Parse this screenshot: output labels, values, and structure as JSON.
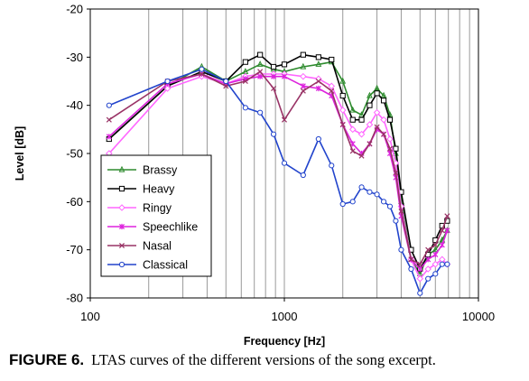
{
  "chart_data": {
    "type": "line",
    "xlabel": "Frequency [Hz]",
    "ylabel": "Level [dB]",
    "xscale": "log",
    "xlim": [
      100,
      10000
    ],
    "ylim": [
      -80,
      -20
    ],
    "xticks": [
      100,
      1000,
      10000
    ],
    "xtick_labels": [
      "100",
      "1000",
      "10000"
    ],
    "yticks": [
      -80,
      -70,
      -60,
      -50,
      -40,
      -30,
      -20
    ],
    "ytick_labels": [
      "-80",
      "-70",
      "-60",
      "-50",
      "-40",
      "-30",
      "-20"
    ],
    "grid": "vertical minor gridlines on log x axis",
    "legend_position": "lower-left",
    "series": [
      {
        "name": "Brassy",
        "color": "#2e8b2e",
        "marker": "triangle",
        "x": [
          125,
          250,
          375,
          500,
          630,
          750,
          880,
          1000,
          1250,
          1500,
          1750,
          2000,
          2250,
          2500,
          2750,
          3000,
          3250,
          3500,
          3750,
          4000,
          4500,
          5000,
          5500,
          6000,
          6500,
          6900
        ],
        "y": [
          -47,
          -36,
          -32,
          -35,
          -33,
          -31.5,
          -32.5,
          -33,
          -32,
          -31.5,
          -31,
          -35,
          -41,
          -42,
          -38,
          -36.5,
          -38,
          -42,
          -50,
          -60,
          -72,
          -75,
          -71,
          -70,
          -68,
          -66
        ]
      },
      {
        "name": "Heavy",
        "color": "#000000",
        "marker": "square",
        "x": [
          125,
          250,
          375,
          500,
          630,
          750,
          880,
          1000,
          1250,
          1500,
          1750,
          2000,
          2250,
          2500,
          2750,
          3000,
          3250,
          3500,
          3750,
          4000,
          4500,
          5000,
          5500,
          6000,
          6500,
          6900
        ],
        "y": [
          -47,
          -36,
          -33,
          -35,
          -31,
          -29.5,
          -32,
          -31.5,
          -29.5,
          -30,
          -30.5,
          -38,
          -43,
          -43,
          -40,
          -37.5,
          -39,
          -43,
          -49,
          -58,
          -70,
          -74,
          -71,
          -68,
          -65,
          -64
        ]
      },
      {
        "name": "Ringy",
        "color": "#ff66ff",
        "marker": "diamond",
        "x": [
          125,
          250,
          375,
          500,
          630,
          750,
          880,
          1000,
          1250,
          1500,
          1750,
          2000,
          2250,
          2500,
          2750,
          3000,
          3250,
          3500,
          3750,
          4000,
          4500,
          5000,
          5500,
          6000,
          6500,
          6900
        ],
        "y": [
          -50,
          -36.5,
          -34,
          -35.5,
          -34,
          -33.5,
          -33.5,
          -33.5,
          -34,
          -34.5,
          -36,
          -41,
          -45,
          -46,
          -44,
          -41.5,
          -43,
          -47,
          -52,
          -61,
          -72,
          -76,
          -74,
          -73,
          -72,
          -73
        ]
      },
      {
        "name": "Speechlike",
        "color": "#dd22dd",
        "marker": "star",
        "x": [
          125,
          250,
          375,
          500,
          630,
          750,
          880,
          1000,
          1250,
          1500,
          1750,
          2000,
          2250,
          2500,
          2750,
          3000,
          3250,
          3500,
          3750,
          4000,
          4500,
          5000,
          5500,
          6000,
          6500,
          6900
        ],
        "y": [
          -46.5,
          -35.5,
          -33.5,
          -35.5,
          -34.5,
          -34,
          -34,
          -34,
          -36,
          -36.5,
          -38,
          -44,
          -48,
          -50,
          -48,
          -45,
          -46,
          -50,
          -55,
          -63,
          -72,
          -74,
          -72,
          -71,
          -69,
          -66
        ]
      },
      {
        "name": "Nasal",
        "color": "#993366",
        "marker": "x",
        "x": [
          125,
          250,
          375,
          500,
          630,
          750,
          880,
          1000,
          1250,
          1500,
          1750,
          2000,
          2250,
          2500,
          2750,
          3000,
          3250,
          3500,
          3750,
          4000,
          4500,
          5000,
          5500,
          6000,
          6500,
          6900
        ],
        "y": [
          -43,
          -35,
          -33.5,
          -36,
          -35,
          -33,
          -36.5,
          -43,
          -37,
          -35,
          -37,
          -44,
          -49.5,
          -50.5,
          -48,
          -44.5,
          -46,
          -49,
          -54,
          -62,
          -72,
          -73,
          -70,
          -69,
          -66,
          -63
        ]
      },
      {
        "name": "Classical",
        "color": "#2244cc",
        "marker": "circle",
        "x": [
          125,
          250,
          375,
          500,
          630,
          750,
          880,
          1000,
          1250,
          1500,
          1750,
          2000,
          2250,
          2500,
          2750,
          3000,
          3250,
          3500,
          3750,
          4000,
          4500,
          5000,
          5500,
          6000,
          6500,
          6900
        ],
        "y": [
          -40,
          -35,
          -32.5,
          -35,
          -40.5,
          -41.5,
          -46,
          -52,
          -54.5,
          -47,
          -52.5,
          -60.5,
          -60,
          -57,
          -58,
          -58.5,
          -60,
          -61,
          -64,
          -70,
          -74,
          -79,
          -76,
          -75,
          -73,
          -73
        ]
      }
    ]
  },
  "caption": {
    "label": "FIGURE 6.",
    "text": "LTAS curves of the different versions of the song excerpt."
  }
}
